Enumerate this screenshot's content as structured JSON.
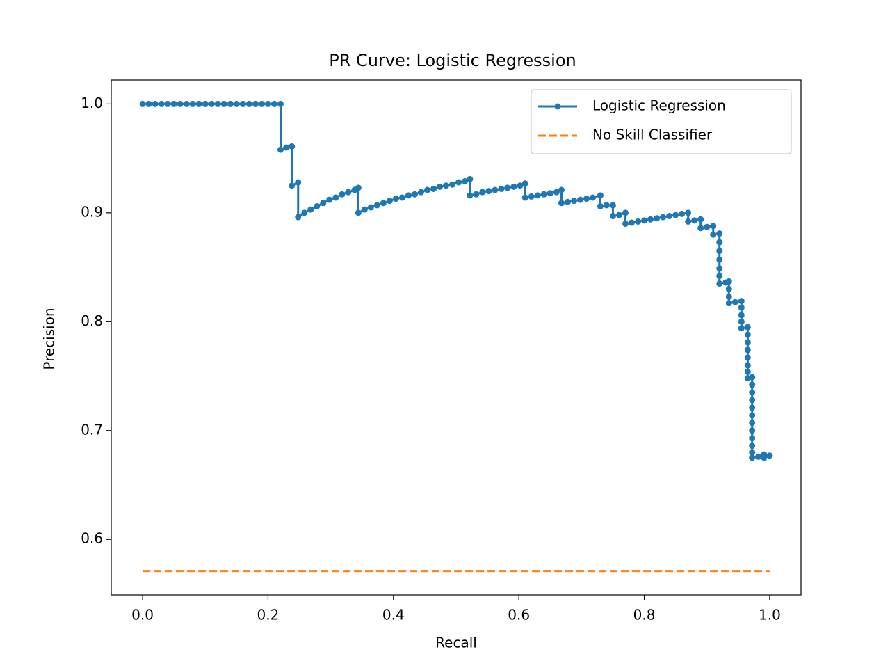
{
  "chart_data": {
    "type": "line",
    "title": "PR Curve: Logistic Regression",
    "x_label": "Recall",
    "y_label": "Precision",
    "xlim": [
      -0.05,
      1.05
    ],
    "ylim": [
      0.549,
      1.022
    ],
    "xticks": [
      {
        "value": 0,
        "label": "0.0"
      },
      0.2,
      0.4,
      0.6,
      0.8,
      {
        "value": 1,
        "label": "1.0"
      }
    ],
    "yticks": [
      0.6,
      0.7,
      0.8,
      0.9,
      {
        "value": 1,
        "label": "1.0"
      }
    ],
    "grid": false,
    "legend": "upper right",
    "series": [
      {
        "name": "Logistic Regression",
        "color": "#1f77b4",
        "marker": "o",
        "linestyle": "solid",
        "x": [
          0,
          0.01,
          0.02,
          0.03,
          0.04,
          0.05,
          0.06,
          0.07,
          0.08,
          0.09,
          0.1,
          0.11,
          0.12,
          0.13,
          0.14,
          0.15,
          0.16,
          0.17,
          0.18,
          0.19,
          0.2,
          0.21,
          0.22,
          0.22,
          0.229,
          0.238,
          0.238,
          0.248,
          0.248,
          0.258,
          0.268,
          0.278,
          0.288,
          0.298,
          0.308,
          0.318,
          0.328,
          0.338,
          0.344,
          0.344,
          0.354,
          0.364,
          0.374,
          0.384,
          0.394,
          0.404,
          0.414,
          0.424,
          0.434,
          0.444,
          0.454,
          0.464,
          0.474,
          0.484,
          0.494,
          0.504,
          0.514,
          0.522,
          0.522,
          0.532,
          0.542,
          0.552,
          0.562,
          0.572,
          0.582,
          0.592,
          0.602,
          0.61,
          0.61,
          0.62,
          0.63,
          0.64,
          0.65,
          0.66,
          0.668,
          0.668,
          0.678,
          0.688,
          0.698,
          0.708,
          0.718,
          0.73,
          0.73,
          0.74,
          0.75,
          0.75,
          0.76,
          0.77,
          0.77,
          0.78,
          0.79,
          0.8,
          0.81,
          0.82,
          0.83,
          0.84,
          0.85,
          0.86,
          0.87,
          0.87,
          0.88,
          0.89,
          0.89,
          0.9,
          0.91,
          0.91,
          0.92,
          0.92,
          0.92,
          0.92,
          0.92,
          0.92,
          0.92,
          0.93,
          0.935,
          0.935,
          0.935,
          0.935,
          0.945,
          0.955,
          0.955,
          0.955,
          0.955,
          0.955,
          0.965,
          0.965,
          0.965,
          0.965,
          0.965,
          0.965,
          0.965,
          0.965,
          0.972,
          0.972,
          0.972,
          0.972,
          0.972,
          0.972,
          0.972,
          0.972,
          0.972,
          0.972,
          0.972,
          0.972,
          0.982,
          0.991,
          0.991,
          1.0
        ],
        "values": [
          1,
          1,
          1,
          1,
          1,
          1,
          1,
          1,
          1,
          1,
          1,
          1,
          1,
          1,
          1,
          1,
          1,
          1,
          1,
          1,
          1,
          1,
          1,
          0.958,
          0.96,
          0.961,
          0.925,
          0.928,
          0.896,
          0.9,
          0.903,
          0.906,
          0.909,
          0.912,
          0.914,
          0.917,
          0.919,
          0.921,
          0.923,
          0.9,
          0.903,
          0.905,
          0.907,
          0.909,
          0.911,
          0.913,
          0.914,
          0.916,
          0.917,
          0.919,
          0.921,
          0.922,
          0.924,
          0.925,
          0.926,
          0.928,
          0.929,
          0.931,
          0.916,
          0.917,
          0.919,
          0.92,
          0.921,
          0.922,
          0.923,
          0.924,
          0.925,
          0.927,
          0.914,
          0.915,
          0.916,
          0.917,
          0.918,
          0.919,
          0.921,
          0.909,
          0.91,
          0.911,
          0.912,
          0.913,
          0.914,
          0.916,
          0.906,
          0.907,
          0.907,
          0.897,
          0.898,
          0.9,
          0.89,
          0.891,
          0.892,
          0.893,
          0.894,
          0.895,
          0.896,
          0.897,
          0.898,
          0.899,
          0.9,
          0.892,
          0.893,
          0.894,
          0.886,
          0.887,
          0.888,
          0.88,
          0.881,
          0.873,
          0.865,
          0.857,
          0.849,
          0.842,
          0.835,
          0.836,
          0.837,
          0.83,
          0.823,
          0.817,
          0.818,
          0.819,
          0.813,
          0.806,
          0.8,
          0.794,
          0.795,
          0.788,
          0.781,
          0.774,
          0.767,
          0.76,
          0.754,
          0.748,
          0.749,
          0.742,
          0.735,
          0.728,
          0.721,
          0.714,
          0.707,
          0.7,
          0.693,
          0.686,
          0.68,
          0.675,
          0.676,
          0.678,
          0.675,
          0.677
        ]
      },
      {
        "name": "No Skill Classifier",
        "color": "#ff7f0e",
        "marker": null,
        "linestyle": "dashed",
        "x": [
          0,
          1
        ],
        "values": [
          0.571,
          0.571
        ]
      }
    ]
  }
}
